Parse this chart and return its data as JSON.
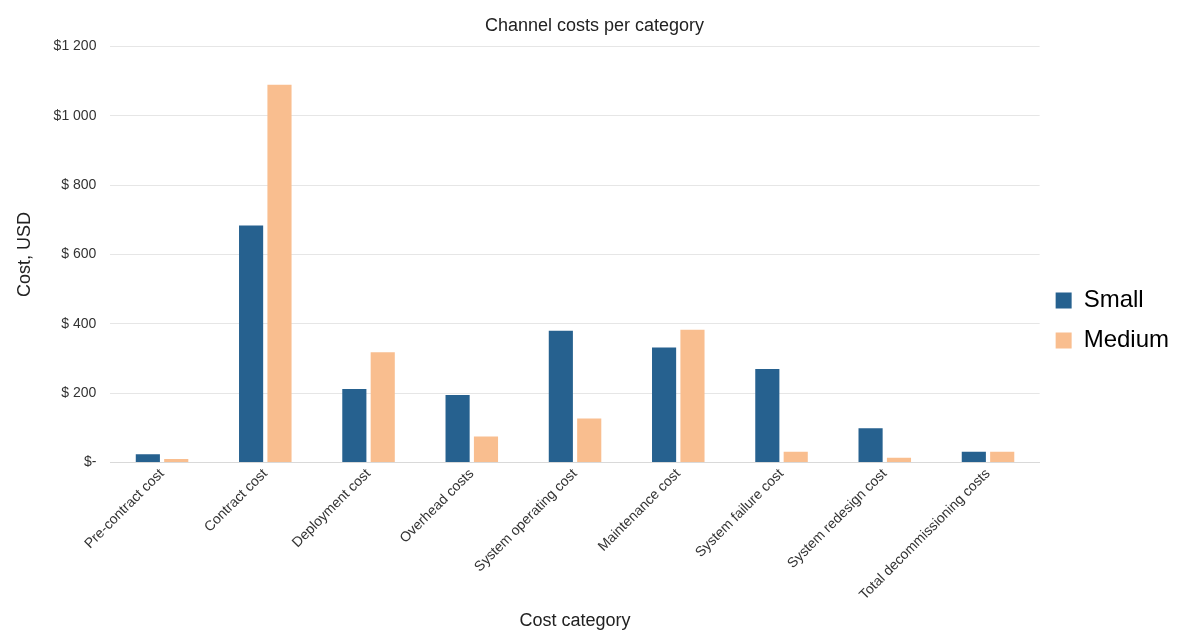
{
  "chart_data": {
    "type": "bar",
    "title": "Channel costs per category",
    "xlabel": "Cost category",
    "ylabel": "Cost, USD",
    "categories": [
      "Pre-contract cost",
      "Contract cost",
      "Deployment cost",
      "Overhead costs",
      "System operating cost",
      "Maintenance cost",
      "System failure cost",
      "System redesign cost",
      "Total decommissioning costs"
    ],
    "series": [
      {
        "name": "Small",
        "color": "#26618f",
        "values": [
          24,
          684,
          212,
          195,
          380,
          332,
          270,
          99,
          31
        ]
      },
      {
        "name": "Medium",
        "color": "#f9be8f",
        "values": [
          10,
          1090,
          318,
          75,
          127,
          383,
          31,
          14,
          31
        ]
      }
    ],
    "ylim": [
      0,
      1200
    ],
    "yticks": [
      {
        "value": 0,
        "label": "$-"
      },
      {
        "value": 200,
        "label": "$ 200"
      },
      {
        "value": 400,
        "label": "$ 400"
      },
      {
        "value": 600,
        "label": "$ 600"
      },
      {
        "value": 800,
        "label": "$ 800"
      },
      {
        "value": 1000,
        "label": "$1 000"
      },
      {
        "value": 1200,
        "label": "$1 200"
      }
    ],
    "grid": "y",
    "legend": "right"
  }
}
